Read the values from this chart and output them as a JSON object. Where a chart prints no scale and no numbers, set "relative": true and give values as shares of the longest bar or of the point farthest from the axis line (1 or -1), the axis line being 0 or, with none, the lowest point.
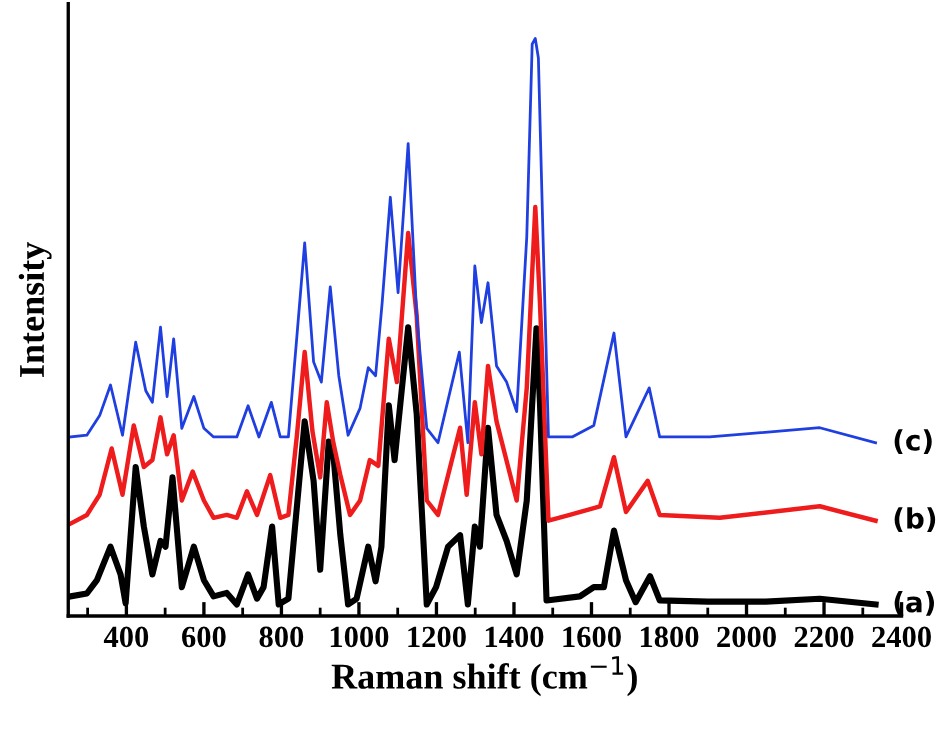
{
  "chart_data": {
    "type": "line",
    "relative": true,
    "xlabel": "Raman shift (cm$^{−1}$)",
    "ylabel": "Intensity",
    "xlim": [
      250,
      2400
    ],
    "xticks": [
      400,
      600,
      800,
      1000,
      1200,
      1400,
      1600,
      1800,
      2000,
      2200,
      2400
    ],
    "grid": false,
    "legend": false,
    "marker": "none",
    "line_style": "solid",
    "series": [
      {
        "name": "(a)",
        "color": "#000000",
        "x": [
          256,
          298,
          324,
          359,
          385,
          398,
          424,
          445,
          467,
          488,
          501,
          519,
          543,
          574,
          600,
          625,
          659,
          685,
          714,
          737,
          754,
          776,
          793,
          818,
          840,
          860,
          883,
          900,
          922,
          934,
          952,
          972,
          994,
          1024,
          1043,
          1058,
          1077,
          1092,
          1127,
          1149,
          1175,
          1199,
          1230,
          1261,
          1281,
          1299,
          1312,
          1333,
          1355,
          1381,
          1407,
          1433,
          1458,
          1467,
          1484,
          1570,
          1606,
          1632,
          1658,
          1689,
          1714,
          1751,
          1776,
          1900,
          2050,
          2189,
          2333
        ],
        "values": [
          0.034,
          0.039,
          0.062,
          0.12,
          0.072,
          0.022,
          0.258,
          0.155,
          0.072,
          0.13,
          0.12,
          0.24,
          0.05,
          0.12,
          0.062,
          0.034,
          0.04,
          0.02,
          0.072,
          0.03,
          0.05,
          0.155,
          0.02,
          0.03,
          0.19,
          0.337,
          0.234,
          0.08,
          0.302,
          0.28,
          0.14,
          0.02,
          0.03,
          0.12,
          0.06,
          0.12,
          0.365,
          0.27,
          0.5,
          0.35,
          0.02,
          0.05,
          0.12,
          0.14,
          0.02,
          0.155,
          0.12,
          0.326,
          0.175,
          0.13,
          0.072,
          0.2,
          0.498,
          0.37,
          0.027,
          0.034,
          0.05,
          0.05,
          0.148,
          0.062,
          0.024,
          0.069,
          0.027,
          0.025,
          0.025,
          0.03,
          0.02
        ]
      },
      {
        "name": "(b)",
        "color": "#ee1c1c",
        "x": [
          256,
          298,
          331,
          362,
          390,
          419,
          445,
          467,
          488,
          505,
          522,
          543,
          571,
          600,
          625,
          659,
          685,
          711,
          737,
          771,
          797,
          818,
          840,
          860,
          880,
          900,
          917,
          934,
          952,
          977,
          1003,
          1028,
          1050,
          1077,
          1098,
          1127,
          1149,
          1175,
          1204,
          1261,
          1278,
          1299,
          1316,
          1333,
          1355,
          1385,
          1407,
          1433,
          1455,
          1467,
          1489,
          1544,
          1622,
          1658,
          1689,
          1745,
          1776,
          1931,
          2189,
          2333
        ],
        "values": [
          0.16,
          0.175,
          0.21,
          0.29,
          0.21,
          0.33,
          0.258,
          0.27,
          0.344,
          0.28,
          0.313,
          0.2,
          0.25,
          0.2,
          0.17,
          0.175,
          0.17,
          0.216,
          0.175,
          0.244,
          0.17,
          0.175,
          0.313,
          0.457,
          0.32,
          0.24,
          0.37,
          0.3,
          0.244,
          0.175,
          0.2,
          0.27,
          0.26,
          0.48,
          0.405,
          0.663,
          0.52,
          0.2,
          0.175,
          0.326,
          0.21,
          0.37,
          0.28,
          0.433,
          0.337,
          0.258,
          0.2,
          0.395,
          0.708,
          0.543,
          0.165,
          0.175,
          0.19,
          0.275,
          0.18,
          0.234,
          0.175,
          0.17,
          0.19,
          0.165
        ]
      },
      {
        "name": "(c)",
        "color": "#1f3fe0",
        "x": [
          256,
          298,
          331,
          359,
          390,
          424,
          450,
          467,
          488,
          505,
          522,
          543,
          574,
          600,
          625,
          685,
          714,
          742,
          774,
          797,
          818,
          840,
          860,
          883,
          903,
          926,
          948,
          972,
          1003,
          1024,
          1043,
          1060,
          1081,
          1101,
          1127,
          1149,
          1175,
          1204,
          1259,
          1281,
          1299,
          1316,
          1333,
          1355,
          1381,
          1407,
          1433,
          1447,
          1455,
          1463,
          1475,
          1489,
          1550,
          1606,
          1658,
          1689,
          1749,
          1776,
          1905,
          2189,
          2333
        ],
        "values": [
          0.31,
          0.313,
          0.347,
          0.4,
          0.313,
          0.474,
          0.39,
          0.37,
          0.5,
          0.38,
          0.48,
          0.325,
          0.38,
          0.325,
          0.31,
          0.31,
          0.364,
          0.31,
          0.37,
          0.31,
          0.31,
          0.485,
          0.646,
          0.44,
          0.405,
          0.57,
          0.416,
          0.313,
          0.36,
          0.43,
          0.416,
          0.543,
          0.725,
          0.56,
          0.818,
          0.52,
          0.325,
          0.3,
          0.457,
          0.3,
          0.606,
          0.508,
          0.577,
          0.433,
          0.405,
          0.354,
          0.656,
          0.99,
          1.0,
          0.966,
          0.656,
          0.31,
          0.31,
          0.33,
          0.49,
          0.31,
          0.395,
          0.31,
          0.31,
          0.326,
          0.3
        ]
      }
    ]
  }
}
